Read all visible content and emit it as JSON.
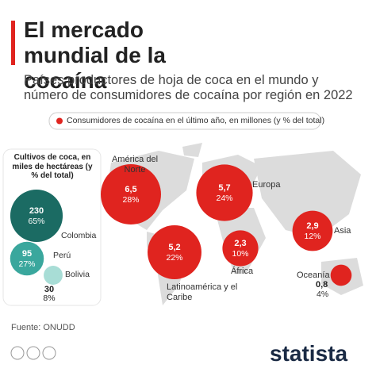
{
  "chart_data": {
    "type": "bubble-map",
    "title": "El mercado mundial de la cocaína",
    "subtitle": "Países productores de hoja de coca en el mundo y número de consumidores de cocaína por región en 2022",
    "legend": "Consumidores de cocaína en el último año, en millones (y % del total)",
    "color": "#e0241f",
    "categories": [
      "América del Norte",
      "Europa",
      "Latinoamérica y el Caribe",
      "África",
      "Asia",
      "Oceanía"
    ],
    "values": [
      6.5,
      5.7,
      5.2,
      2.3,
      2.9,
      0.8
    ],
    "value_labels": [
      "6,5",
      "5,7",
      "5,2",
      "2,3",
      "2,9",
      "0,8"
    ],
    "shares": [
      28,
      24,
      22,
      10,
      12,
      4
    ],
    "share_labels": [
      "28%",
      "24%",
      "22%",
      "10%",
      "12%",
      "4%"
    ],
    "inset": {
      "title": "Cultivos de coca, en miles de hectáreas (y % del total)",
      "categories": [
        "Colombia",
        "Perú",
        "Bolivia"
      ],
      "values": [
        230,
        95,
        30
      ],
      "shares": [
        65,
        27,
        8
      ],
      "share_labels": [
        "65%",
        "27%",
        "8%"
      ],
      "colors": [
        "#1b6b63",
        "#3aa79d",
        "#a8ddd6"
      ]
    },
    "source": "Fuente: ONUDD",
    "brand": "statista"
  }
}
